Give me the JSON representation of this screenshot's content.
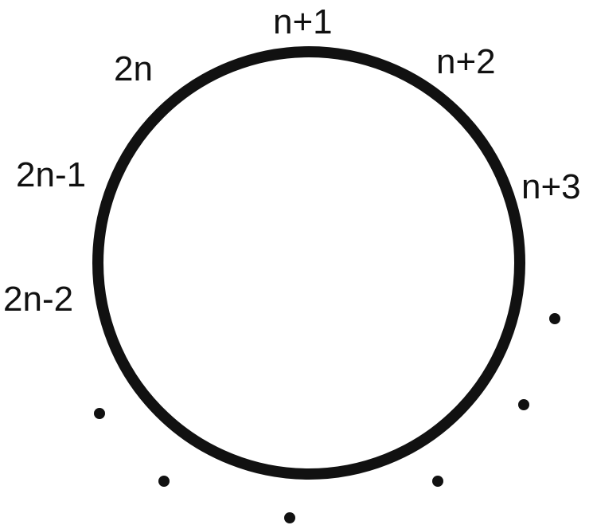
{
  "diagram": {
    "ring_labels": {
      "n_plus_1": "n+1",
      "n_plus_2": "n+2",
      "n_plus_3": "n+3",
      "two_n": "2n",
      "two_n_minus_1": "2n-1",
      "two_n_minus_2": "2n-2"
    },
    "colors": {
      "stroke": "#111111",
      "dot": "#111111",
      "text": "#111111",
      "background": "#ffffff"
    }
  }
}
